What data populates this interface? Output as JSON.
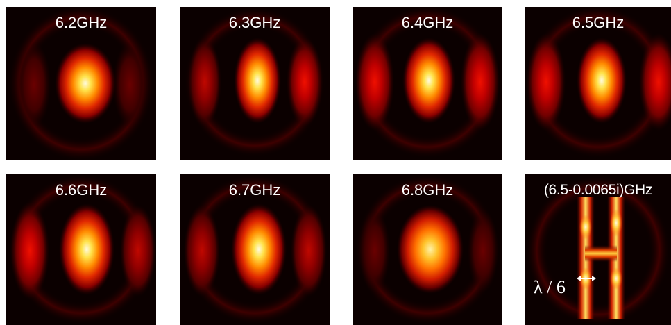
{
  "figure": {
    "panels": [
      {
        "label": "6.2GHz"
      },
      {
        "label": "6.3GHz"
      },
      {
        "label": "6.4GHz"
      },
      {
        "label": "6.5GHz"
      },
      {
        "label": "6.6GHz"
      },
      {
        "label": "6.7GHz"
      },
      {
        "label": "6.8GHz"
      },
      {
        "label": "(6.5-0.0065i)GHz",
        "annotation": "λ / 6"
      }
    ],
    "colors": {
      "background": "#0b0000",
      "field_dark": "#4a0000",
      "field_red": "#c80000",
      "field_orange": "#ff6a00",
      "field_yellow": "#ffe24a",
      "field_white": "#fffbe0",
      "annotation": "#ffffff"
    },
    "colormap": "hot",
    "arrow_icon": "double-headed-arrow"
  }
}
